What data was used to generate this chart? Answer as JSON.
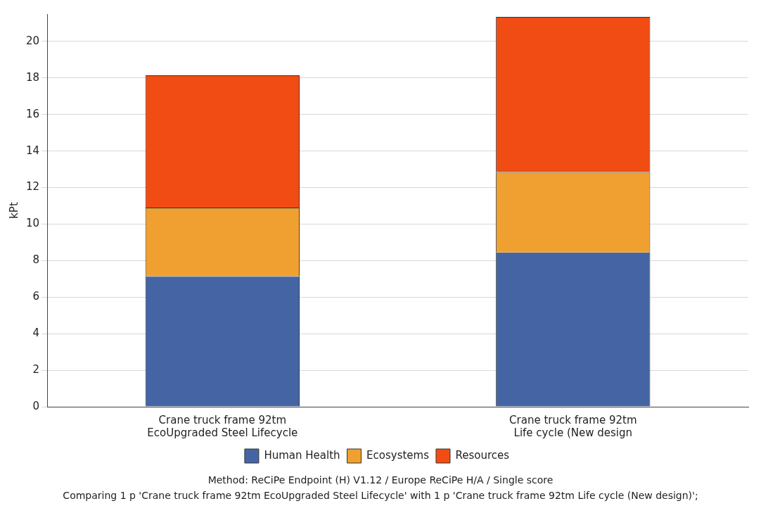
{
  "chart_data": {
    "type": "bar",
    "stacked": true,
    "ylabel": "kPt",
    "categories": [
      "Crane truck frame 92tm\nEcoUpgraded Steel Lifecycle",
      "Crane truck frame 92tm\nLife cycle (New design"
    ],
    "series": [
      {
        "name": "Human Health",
        "color": "#4464a4",
        "values": [
          7.15,
          8.45
        ]
      },
      {
        "name": "Ecosystems",
        "color": "#f0a030",
        "values": [
          3.75,
          4.4
        ]
      },
      {
        "name": "Resources",
        "color": "#f04c14",
        "values": [
          7.25,
          8.5
        ]
      }
    ],
    "ylim": [
      0,
      21.5
    ],
    "yticks": [
      0,
      2,
      4,
      6,
      8,
      10,
      12,
      14,
      16,
      18,
      20
    ],
    "grid": "y",
    "legend": "bottom",
    "annotations": [
      "Method: ReCiPe Endpoint (H) V1.12 / Europe ReCiPe H/A / Single score",
      "Comparing 1 p 'Crane truck frame 92tm EcoUpgraded Steel Lifecycle' with 1 p 'Crane truck frame 92tm Life cycle (New design)';"
    ]
  }
}
